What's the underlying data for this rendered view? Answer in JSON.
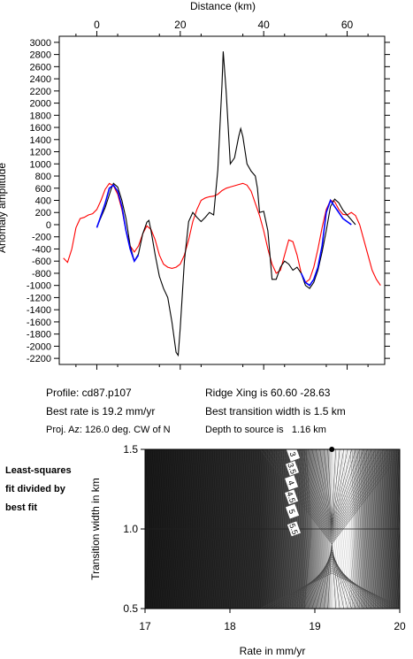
{
  "chart_data": [
    {
      "type": "line",
      "title": "",
      "xlabel": "Distance (km)",
      "ylabel": "Anomaly amplitude",
      "xlim": [
        -9,
        69
      ],
      "ylim": [
        -2300,
        3100
      ],
      "x_ticks": [
        0,
        20,
        40,
        60
      ],
      "y_ticks": [
        3000,
        2800,
        2600,
        2400,
        2200,
        2000,
        1800,
        1600,
        1400,
        1200,
        1000,
        800,
        600,
        400,
        200,
        0,
        -200,
        -400,
        -600,
        -800,
        -1000,
        -1200,
        -1400,
        -1600,
        -1800,
        -2000,
        -2200
      ],
      "series": [
        {
          "name": "",
          "color": "#000000",
          "points": [
            [
              0,
              -40
            ],
            [
              2,
              280
            ],
            [
              3.5,
              600
            ],
            [
              4,
              680
            ],
            [
              5,
              620
            ],
            [
              6,
              400
            ],
            [
              7,
              100
            ],
            [
              8,
              -350
            ],
            [
              9,
              -600
            ],
            [
              10,
              -480
            ],
            [
              11,
              -150
            ],
            [
              12,
              40
            ],
            [
              12.5,
              70
            ],
            [
              13,
              -100
            ],
            [
              14,
              -500
            ],
            [
              15,
              -850
            ],
            [
              16,
              -1050
            ],
            [
              17,
              -1200
            ],
            [
              18,
              -1600
            ],
            [
              19,
              -2100
            ],
            [
              19.5,
              -2150
            ],
            [
              20,
              -1700
            ],
            [
              21,
              -600
            ],
            [
              22,
              50
            ],
            [
              23,
              200
            ],
            [
              24,
              120
            ],
            [
              25,
              50
            ],
            [
              26,
              120
            ],
            [
              27,
              200
            ],
            [
              28,
              160
            ],
            [
              29,
              900
            ],
            [
              30,
              2300
            ],
            [
              30.3,
              2850
            ],
            [
              31,
              2200
            ],
            [
              32,
              1000
            ],
            [
              33,
              1100
            ],
            [
              34,
              1450
            ],
            [
              34.5,
              1580
            ],
            [
              35,
              1450
            ],
            [
              36,
              1000
            ],
            [
              37,
              880
            ],
            [
              38,
              800
            ],
            [
              38.5,
              600
            ],
            [
              39,
              200
            ],
            [
              40,
              220
            ],
            [
              41,
              -100
            ],
            [
              42,
              -900
            ],
            [
              43,
              -900
            ],
            [
              44,
              -700
            ],
            [
              45,
              -600
            ],
            [
              46,
              -650
            ],
            [
              47,
              -750
            ],
            [
              48,
              -700
            ],
            [
              49,
              -800
            ],
            [
              50,
              -1000
            ],
            [
              51,
              -1050
            ],
            [
              52,
              -950
            ],
            [
              53,
              -750
            ],
            [
              54,
              -450
            ],
            [
              55,
              -100
            ],
            [
              56,
              300
            ],
            [
              57,
              420
            ],
            [
              58,
              360
            ],
            [
              59,
              240
            ],
            [
              60,
              160
            ],
            [
              61,
              80
            ],
            [
              62,
              0
            ]
          ]
        },
        {
          "name": "",
          "color": "#ff0000",
          "points": [
            [
              -8,
              -550
            ],
            [
              -7,
              -620
            ],
            [
              -6,
              -400
            ],
            [
              -5,
              -50
            ],
            [
              -4,
              100
            ],
            [
              -3,
              120
            ],
            [
              -2,
              160
            ],
            [
              -1,
              180
            ],
            [
              0,
              250
            ],
            [
              1,
              400
            ],
            [
              2,
              580
            ],
            [
              3,
              680
            ],
            [
              4,
              640
            ],
            [
              5,
              500
            ],
            [
              6,
              250
            ],
            [
              7,
              -100
            ],
            [
              8,
              -350
            ],
            [
              9,
              -450
            ],
            [
              10,
              -350
            ],
            [
              11,
              -150
            ],
            [
              12,
              -20
            ],
            [
              13,
              -80
            ],
            [
              14,
              -250
            ],
            [
              15,
              -500
            ],
            [
              16,
              -650
            ],
            [
              17,
              -700
            ],
            [
              18,
              -720
            ],
            [
              19,
              -700
            ],
            [
              20,
              -650
            ],
            [
              21,
              -500
            ],
            [
              22,
              -250
            ],
            [
              23,
              50
            ],
            [
              24,
              250
            ],
            [
              25,
              400
            ],
            [
              26,
              440
            ],
            [
              27,
              460
            ],
            [
              28,
              470
            ],
            [
              29,
              500
            ],
            [
              30,
              560
            ],
            [
              31,
              600
            ],
            [
              32,
              620
            ],
            [
              33,
              640
            ],
            [
              34,
              660
            ],
            [
              35,
              680
            ],
            [
              36,
              650
            ],
            [
              37,
              550
            ],
            [
              38,
              350
            ],
            [
              39,
              150
            ],
            [
              40,
              -100
            ],
            [
              41,
              -400
            ],
            [
              42,
              -650
            ],
            [
              43,
              -800
            ],
            [
              44,
              -750
            ],
            [
              45,
              -500
            ],
            [
              46,
              -250
            ],
            [
              47,
              -280
            ],
            [
              48,
              -500
            ],
            [
              49,
              -800
            ],
            [
              50,
              -950
            ],
            [
              51,
              -900
            ],
            [
              52,
              -700
            ],
            [
              53,
              -400
            ],
            [
              54,
              -50
            ],
            [
              55,
              250
            ],
            [
              56,
              400
            ],
            [
              57,
              380
            ],
            [
              58,
              250
            ],
            [
              59,
              170
            ],
            [
              60,
              160
            ],
            [
              61,
              200
            ],
            [
              62,
              150
            ],
            [
              63,
              0
            ],
            [
              64,
              -250
            ],
            [
              65,
              -500
            ],
            [
              66,
              -750
            ],
            [
              67,
              -900
            ],
            [
              68,
              -1000
            ]
          ]
        },
        {
          "name": "",
          "color": "#0000ff",
          "points": [
            [
              0,
              -50
            ],
            [
              1,
              150
            ],
            [
              2,
              350
            ],
            [
              3,
              600
            ],
            [
              4,
              650
            ],
            [
              5,
              550
            ],
            [
              6,
              300
            ],
            [
              7,
              -100
            ],
            [
              8,
              -400
            ],
            [
              9,
              -600
            ],
            [
              10,
              -500
            ],
            [
              49,
              -800
            ],
            [
              50,
              -950
            ],
            [
              51,
              -1000
            ],
            [
              52,
              -900
            ],
            [
              53,
              -700
            ],
            [
              54,
              -350
            ],
            [
              55,
              200
            ],
            [
              56,
              400
            ],
            [
              57,
              300
            ],
            [
              58,
              200
            ],
            [
              59,
              100
            ],
            [
              60,
              50
            ],
            [
              61,
              0
            ]
          ]
        }
      ]
    },
    {
      "type": "heatmap",
      "title": "",
      "xlabel": "Rate in mm/yr",
      "ylabel": "Transition width in km",
      "xlim": [
        17,
        20
      ],
      "ylim": [
        0.5,
        1.5
      ],
      "x_ticks": [
        17,
        18,
        19,
        20
      ],
      "y_ticks": [
        0.5,
        1.0,
        1.5
      ],
      "contour_labels": [
        "3",
        "3.5",
        "4",
        "4.5",
        "5",
        "5.5"
      ],
      "best_fit": {
        "rate": 19.2,
        "width": 1.5
      },
      "colormap": "grayscale"
    }
  ],
  "text": {
    "profile": "Profile: cd87.p107",
    "best_rate": "Best rate is 19.2 mm/yr",
    "proj_az": "Proj. Az: 126.0 deg. CW of N",
    "ridge_xing": "Ridge Xing is 60.60 -28.63",
    "best_transition": "Best transition width is 1.5 km",
    "depth": "Depth to source is   1.16 km",
    "side_note": [
      "Least-squares",
      "fit divided by",
      "best fit"
    ]
  }
}
